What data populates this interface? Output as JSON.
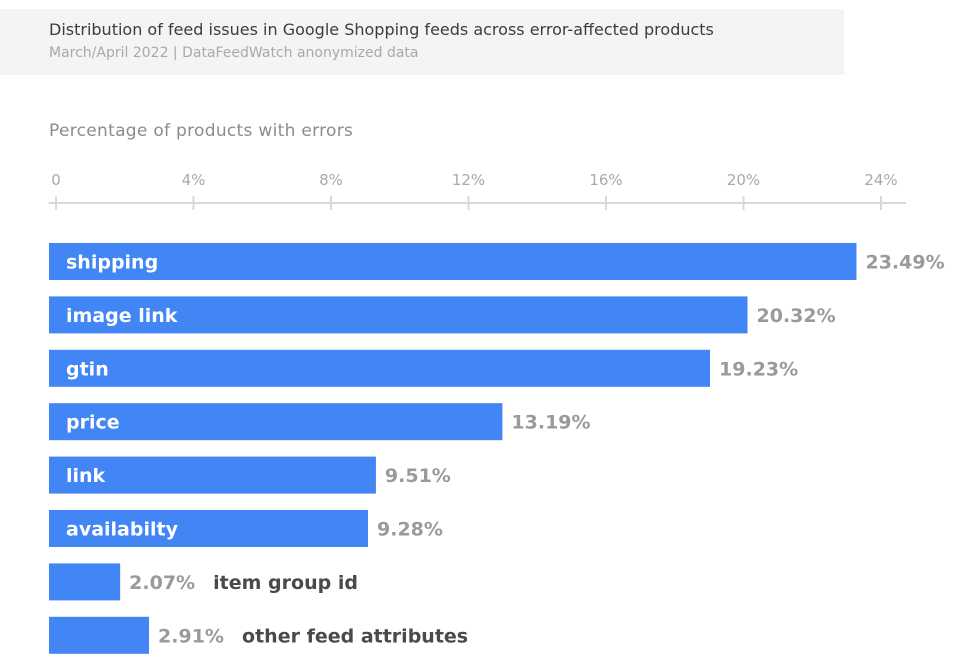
{
  "chart_data": {
    "type": "bar",
    "orientation": "horizontal",
    "title": "Distribution of feed issues in Google Shopping feeds across error-affected products",
    "subtitle": "March/April 2022 | DataFeedWatch anonymized data",
    "xlabel": "Percentage of products with errors",
    "xlim": [
      0,
      24.8
    ],
    "xticks": [
      {
        "value": 0,
        "label": "0"
      },
      {
        "value": 4,
        "label": "4%"
      },
      {
        "value": 8,
        "label": "8%"
      },
      {
        "value": 12,
        "label": "12%"
      },
      {
        "value": 16,
        "label": "16%"
      },
      {
        "value": 20,
        "label": "20%"
      },
      {
        "value": 24,
        "label": "24%"
      }
    ],
    "bar_color": "#4285f4",
    "bars": [
      {
        "category": "shipping",
        "value": 23.49,
        "value_label": "23.49%"
      },
      {
        "category": "image link",
        "value": 20.32,
        "value_label": "20.32%"
      },
      {
        "category": "gtin",
        "value": 19.23,
        "value_label": "19.23%"
      },
      {
        "category": "price",
        "value": 13.19,
        "value_label": "13.19%"
      },
      {
        "category": "link",
        "value": 9.51,
        "value_label": "9.51%"
      },
      {
        "category": "availabilty",
        "value": 9.28,
        "value_label": "9.28%"
      },
      {
        "category": "item group id",
        "value": 2.07,
        "value_label": "2.07%"
      },
      {
        "category": "other feed attributes",
        "value": 2.91,
        "value_label": "2.91%"
      }
    ]
  }
}
